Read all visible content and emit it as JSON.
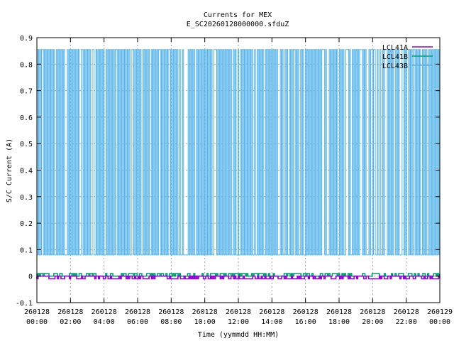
{
  "chart_data": {
    "type": "line",
    "title": "Currents for MEX",
    "subtitle": "E_SC20260128000000.sfduZ",
    "xlabel": "Time (yymmdd HH:MM)",
    "ylabel": "S/C Current (A)",
    "ylim": [
      -0.1,
      0.9
    ],
    "yticks": [
      "-0.1",
      "0",
      "0.1",
      "0.2",
      "0.3",
      "0.4",
      "0.5",
      "0.6",
      "0.7",
      "0.8",
      "0.9"
    ],
    "xticks": [
      {
        "date": "260128",
        "time": "00:00"
      },
      {
        "date": "260128",
        "time": "02:00"
      },
      {
        "date": "260128",
        "time": "04:00"
      },
      {
        "date": "260128",
        "time": "06:00"
      },
      {
        "date": "260128",
        "time": "08:00"
      },
      {
        "date": "260128",
        "time": "10:00"
      },
      {
        "date": "260128",
        "time": "12:00"
      },
      {
        "date": "260128",
        "time": "14:00"
      },
      {
        "date": "260128",
        "time": "16:00"
      },
      {
        "date": "260128",
        "time": "18:00"
      },
      {
        "date": "260128",
        "time": "20:00"
      },
      {
        "date": "260128",
        "time": "22:00"
      },
      {
        "date": "260129",
        "time": "00:00"
      }
    ],
    "xlim_hours": [
      0,
      24
    ],
    "grid": true,
    "legend_position": "top-right",
    "series": [
      {
        "name": "LCL41A",
        "color": "#9400d3",
        "high": 0.0,
        "low": -0.01
      },
      {
        "name": "LCL41B",
        "color": "#009e73",
        "high": 0.01,
        "low": 0.0
      },
      {
        "name": "LCL43B",
        "color": "#56b4e9",
        "high": 0.855,
        "low": 0.08
      }
    ]
  }
}
